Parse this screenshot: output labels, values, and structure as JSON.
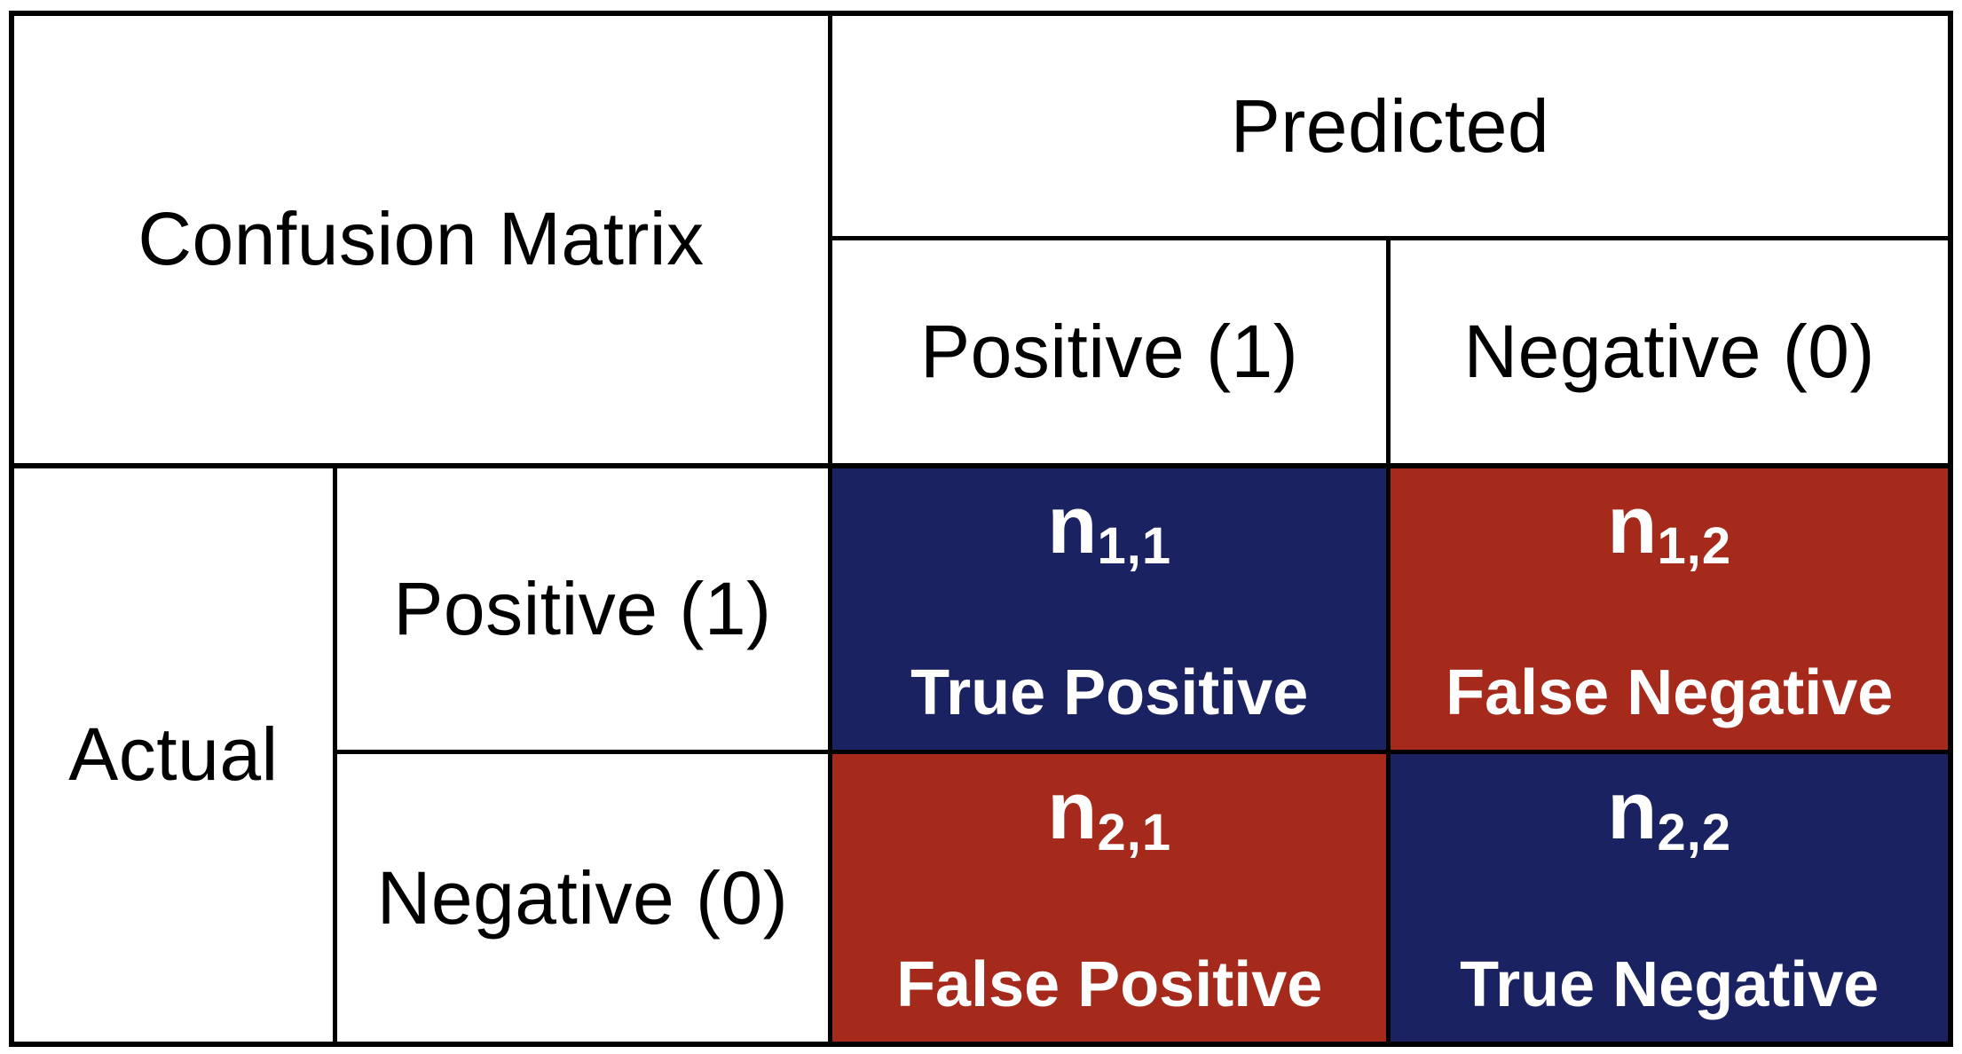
{
  "matrix": {
    "corner_title": "Confusion Matrix",
    "predicted_axis_label": "Predicted",
    "actual_axis_label": "Actual",
    "predicted_columns": [
      {
        "label": "Positive (1)"
      },
      {
        "label": "Negative (0)"
      }
    ],
    "actual_rows": [
      {
        "label": "Positive (1)"
      },
      {
        "label": "Negative (0)"
      }
    ],
    "cells": [
      {
        "name": "true-positive",
        "symbol": "n",
        "subscript": "1,1",
        "label": "True Positive",
        "bg": "#1b2262"
      },
      {
        "name": "false-negative",
        "symbol": "n",
        "subscript": "1,2",
        "label": "False Negative",
        "bg": "#a62a1c"
      },
      {
        "name": "false-positive",
        "symbol": "n",
        "subscript": "2,1",
        "label": "False Positive",
        "bg": "#a62a1c"
      },
      {
        "name": "true-negative",
        "symbol": "n",
        "subscript": "2,2",
        "label": "True Negative",
        "bg": "#1b2262"
      }
    ],
    "colors": {
      "navy": "#1b2262",
      "red": "#a62a1c",
      "border": "#000000",
      "background": "#ffffff",
      "cell_text": "#ffffff",
      "header_text": "#000000"
    }
  }
}
